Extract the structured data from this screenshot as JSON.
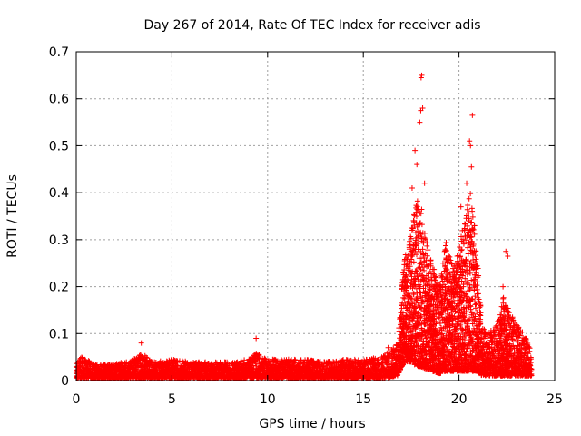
{
  "chart_data": {
    "type": "scatter",
    "title": "Day 267 of 2014, Rate Of TEC Index for receiver adis",
    "xlabel": "GPS time / hours",
    "ylabel": "ROTI / TECUs",
    "xlim": [
      0,
      25
    ],
    "ylim": [
      0,
      0.7
    ],
    "x_ticks": [
      0,
      5,
      10,
      15,
      20,
      25
    ],
    "x_tick_labels": [
      "0",
      "5",
      "10",
      "15",
      "20",
      "25"
    ],
    "y_ticks": [
      0,
      0.1,
      0.2,
      0.3,
      0.4,
      0.5,
      0.6,
      0.7
    ],
    "y_tick_labels": [
      "0",
      "0.1",
      "0.2",
      "0.3",
      "0.4",
      "0.5",
      "0.6",
      "0.7"
    ],
    "grid": true,
    "marker": "plus",
    "marker_color": "#ff0000",
    "series": [
      {
        "name": "ROTI",
        "envelope": {
          "x": [
            0,
            0.3,
            1,
            2,
            3,
            3.4,
            4,
            5,
            6,
            7,
            8,
            9,
            9.4,
            10,
            11,
            12,
            13,
            14,
            15,
            16,
            16.8,
            17.0,
            17.2,
            17.5,
            17.8,
            18.0,
            18.3,
            18.6,
            19.0,
            19.3,
            19.7,
            20.0,
            20.3,
            20.6,
            20.9,
            21.2,
            21.5,
            22.0,
            22.3,
            22.6,
            23.0,
            23.4,
            23.8
          ],
          "base": [
            0.005,
            0.005,
            0.005,
            0.005,
            0.005,
            0.005,
            0.005,
            0.005,
            0.005,
            0.005,
            0.005,
            0.005,
            0.005,
            0.005,
            0.005,
            0.005,
            0.005,
            0.005,
            0.005,
            0.005,
            0.01,
            0.03,
            0.04,
            0.04,
            0.03,
            0.03,
            0.025,
            0.02,
            0.015,
            0.02,
            0.02,
            0.02,
            0.02,
            0.02,
            0.02,
            0.01,
            0.01,
            0.01,
            0.01,
            0.01,
            0.01,
            0.01,
            0.01
          ],
          "peak": [
            0.04,
            0.05,
            0.035,
            0.035,
            0.045,
            0.06,
            0.04,
            0.045,
            0.04,
            0.04,
            0.04,
            0.045,
            0.06,
            0.045,
            0.045,
            0.045,
            0.04,
            0.045,
            0.045,
            0.05,
            0.08,
            0.2,
            0.27,
            0.32,
            0.4,
            0.38,
            0.3,
            0.25,
            0.2,
            0.3,
            0.24,
            0.28,
            0.35,
            0.4,
            0.3,
            0.12,
            0.1,
            0.12,
            0.18,
            0.15,
            0.12,
            0.1,
            0.06
          ]
        },
        "spikes": [
          {
            "x": 3.4,
            "y": 0.08
          },
          {
            "x": 9.4,
            "y": 0.09
          },
          {
            "x": 16.3,
            "y": 0.07
          },
          {
            "x": 17.55,
            "y": 0.41
          },
          {
            "x": 17.7,
            "y": 0.49
          },
          {
            "x": 17.8,
            "y": 0.46
          },
          {
            "x": 17.95,
            "y": 0.55
          },
          {
            "x": 18.0,
            "y": 0.575
          },
          {
            "x": 18.02,
            "y": 0.645
          },
          {
            "x": 18.05,
            "y": 0.65
          },
          {
            "x": 18.1,
            "y": 0.58
          },
          {
            "x": 18.2,
            "y": 0.42
          },
          {
            "x": 20.1,
            "y": 0.37
          },
          {
            "x": 20.4,
            "y": 0.42
          },
          {
            "x": 20.55,
            "y": 0.51
          },
          {
            "x": 20.6,
            "y": 0.5
          },
          {
            "x": 20.65,
            "y": 0.455
          },
          {
            "x": 20.7,
            "y": 0.565
          },
          {
            "x": 20.8,
            "y": 0.33
          },
          {
            "x": 22.45,
            "y": 0.275
          },
          {
            "x": 22.55,
            "y": 0.265
          },
          {
            "x": 22.3,
            "y": 0.2
          },
          {
            "x": 23.1,
            "y": 0.11
          }
        ]
      }
    ]
  }
}
